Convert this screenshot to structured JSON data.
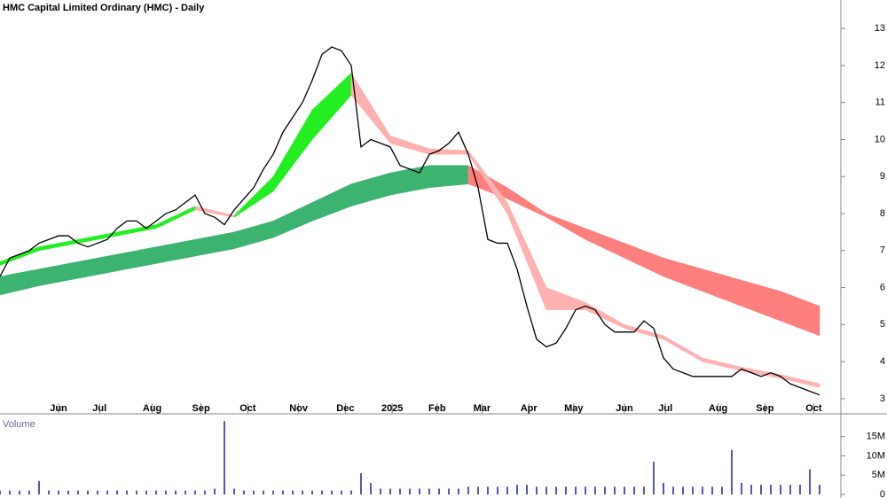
{
  "chart_data": [
    {
      "type": "line",
      "title": "HMC Capital Limited Ordinary (HMC) - Daily",
      "x": [
        0,
        5,
        10,
        15,
        20,
        25,
        30,
        35,
        40,
        45,
        50,
        55,
        60,
        65,
        70,
        75,
        80,
        85,
        90,
        95,
        100,
        105,
        110,
        115,
        120,
        125,
        130,
        135,
        140,
        145,
        150,
        155,
        160,
        165,
        170,
        175,
        180,
        185,
        190,
        195,
        200,
        205,
        210,
        215,
        220,
        225,
        230,
        235,
        240,
        245,
        250,
        255,
        260,
        265,
        270,
        275,
        280,
        285,
        290,
        295,
        300,
        305,
        310,
        315,
        320,
        325,
        330,
        335,
        340,
        345,
        350,
        355,
        360,
        365,
        370,
        375,
        380,
        385,
        390,
        395,
        400,
        405,
        410,
        415,
        420
      ],
      "xlim": [
        0,
        420
      ],
      "xticks": [
        {
          "value": 30,
          "label": "Jun"
        },
        {
          "value": 51,
          "label": "Jul"
        },
        {
          "value": 78,
          "label": "Aug"
        },
        {
          "value": 103,
          "label": "Sep"
        },
        {
          "value": 127,
          "label": "Oct"
        },
        {
          "value": 153,
          "label": "Nov"
        },
        {
          "value": 177,
          "label": "Dec"
        },
        {
          "value": 201,
          "label": "2025"
        },
        {
          "value": 224,
          "label": "Feb"
        },
        {
          "value": 247,
          "label": "Mar"
        },
        {
          "value": 271,
          "label": "Apr"
        },
        {
          "value": 294,
          "label": "May"
        },
        {
          "value": 320,
          "label": "Jun"
        },
        {
          "value": 341,
          "label": "Jul"
        },
        {
          "value": 368,
          "label": "Aug"
        },
        {
          "value": 392,
          "label": "Sep"
        },
        {
          "value": 417,
          "label": "Oct"
        }
      ],
      "ylim": [
        2.59,
        13.77
      ],
      "yticks": [
        3,
        4,
        5,
        6,
        7,
        8,
        9,
        10,
        11,
        12,
        13
      ],
      "series": [
        {
          "color": "#000000",
          "values": [
            6.3,
            6.8,
            6.9,
            7.0,
            7.2,
            7.3,
            7.4,
            7.4,
            7.2,
            7.1,
            7.2,
            7.3,
            7.6,
            7.8,
            7.8,
            7.6,
            7.8,
            8.0,
            8.1,
            8.3,
            8.5,
            8.0,
            7.9,
            7.7,
            8.1,
            8.4,
            8.7,
            9.2,
            9.6,
            10.2,
            10.6,
            11.0,
            11.6,
            12.3,
            12.5,
            12.4,
            12.0,
            9.8,
            10.0,
            9.9,
            9.8,
            9.3,
            9.2,
            9.1,
            9.6,
            9.7,
            9.9,
            10.2,
            9.6,
            8.7,
            7.3,
            7.2,
            7.2,
            6.5,
            5.5,
            4.6,
            4.4,
            4.5,
            4.9,
            5.4,
            5.5,
            5.4,
            5.0,
            4.8,
            4.8,
            4.8,
            5.1,
            4.9,
            4.1,
            3.8,
            3.7,
            3.6,
            3.6,
            3.6,
            3.6,
            3.6,
            3.8,
            3.7,
            3.6,
            3.7,
            3.6,
            3.4,
            3.3,
            3.2,
            3.1
          ]
        }
      ],
      "bands": [
        {
          "x": [
            0,
            20,
            40,
            60,
            80,
            100,
            120,
            140,
            160,
            180,
            200,
            220,
            240,
            260,
            280,
            300,
            320,
            340,
            360,
            380,
            400,
            420
          ],
          "upper": [
            6.3,
            6.5,
            6.7,
            6.9,
            7.1,
            7.3,
            7.5,
            7.8,
            8.3,
            8.8,
            9.1,
            9.3,
            9.3,
            8.7,
            8.0,
            7.6,
            7.2,
            6.8,
            6.5,
            6.2,
            5.9,
            5.5
          ],
          "lower": [
            5.8,
            6.05,
            6.25,
            6.45,
            6.65,
            6.85,
            7.05,
            7.35,
            7.8,
            8.2,
            8.5,
            8.7,
            8.8,
            8.4,
            7.9,
            7.3,
            6.8,
            6.3,
            5.9,
            5.5,
            5.1,
            4.7
          ],
          "rising_color": "#3cb371",
          "falling_color": "#ff7f7f"
        },
        {
          "x": [
            0,
            20,
            40,
            60,
            80,
            100,
            120,
            140,
            160,
            180,
            200,
            220,
            240,
            260,
            280,
            300,
            320,
            340,
            360,
            380,
            400,
            420
          ],
          "upper": [
            6.7,
            7.1,
            7.3,
            7.5,
            7.7,
            8.2,
            7.95,
            9.0,
            10.8,
            11.8,
            10.1,
            9.75,
            9.7,
            8.3,
            6.0,
            5.6,
            5.0,
            4.7,
            4.1,
            3.85,
            3.65,
            3.4
          ],
          "lower": [
            6.6,
            7.0,
            7.2,
            7.4,
            7.6,
            8.1,
            7.9,
            8.6,
            10.0,
            11.2,
            9.9,
            9.6,
            9.6,
            8.0,
            5.4,
            5.4,
            4.9,
            4.6,
            4.0,
            3.75,
            3.55,
            3.3
          ],
          "rising_color": "#22ee22",
          "falling_color": "#ffb0b0"
        }
      ]
    },
    {
      "type": "bar",
      "title": "Volume",
      "x": [
        0,
        5,
        10,
        15,
        20,
        25,
        30,
        35,
        40,
        45,
        50,
        55,
        60,
        65,
        70,
        75,
        80,
        85,
        90,
        95,
        100,
        105,
        110,
        115,
        120,
        125,
        130,
        135,
        140,
        145,
        150,
        155,
        160,
        165,
        170,
        175,
        180,
        185,
        190,
        195,
        200,
        205,
        210,
        215,
        220,
        225,
        230,
        235,
        240,
        245,
        250,
        255,
        260,
        265,
        270,
        275,
        280,
        285,
        290,
        295,
        300,
        305,
        310,
        315,
        320,
        325,
        330,
        335,
        340,
        345,
        350,
        355,
        360,
        365,
        370,
        375,
        380,
        385,
        390,
        395,
        400,
        405,
        410,
        415,
        420
      ],
      "xlim": [
        0,
        420
      ],
      "values": [
        1,
        1,
        1,
        1,
        3.5,
        1,
        1,
        1,
        1,
        1,
        1,
        1,
        1,
        1,
        1,
        1,
        1,
        1,
        1,
        1,
        1,
        1,
        1.5,
        19,
        1.5,
        1,
        1,
        1,
        1,
        1,
        1,
        1,
        1,
        1,
        1,
        1,
        1,
        5.5,
        3,
        1.5,
        1.5,
        1.5,
        1.5,
        1.5,
        1.5,
        1.5,
        1.5,
        1.5,
        2,
        2,
        2,
        2,
        2,
        2.5,
        2.5,
        2,
        2,
        2,
        2,
        2,
        2,
        2,
        2,
        2,
        2,
        2,
        2,
        8.5,
        3,
        2,
        2,
        2,
        2,
        2,
        2,
        11.5,
        3,
        2.5,
        2.5,
        2.5,
        2.5,
        2.5,
        2.5,
        6.5,
        2.5
      ],
      "color": "#5555bb",
      "ylim": [
        0,
        20.2
      ],
      "yticks": [
        {
          "value": 15,
          "label": "15M"
        },
        {
          "value": 10,
          "label": "10M"
        },
        {
          "value": 5,
          "label": "5M"
        },
        0
      ]
    }
  ]
}
